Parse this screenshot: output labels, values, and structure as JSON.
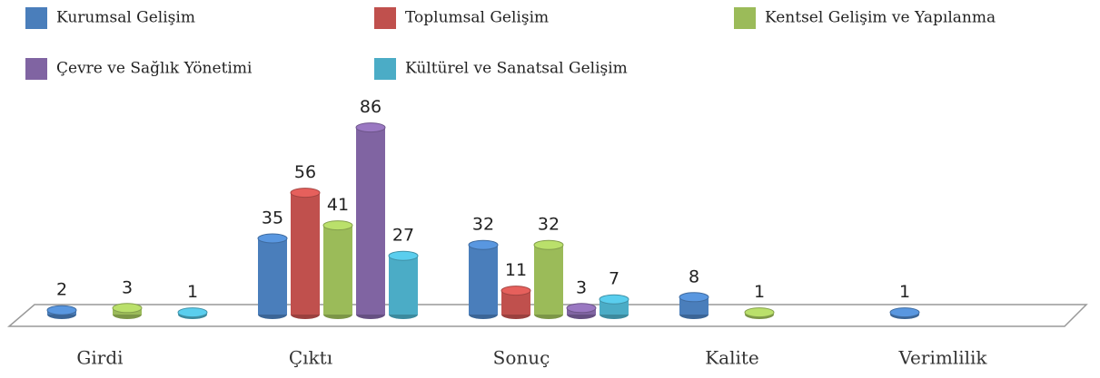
{
  "chart_data": {
    "type": "bar",
    "categories": [
      "Girdi",
      "Çıktı",
      "Sonuç",
      "Kalite",
      "Verimlilik"
    ],
    "series": [
      {
        "name": "Kurumsal Gelişim",
        "color": "#4a7ebb",
        "values": [
          2,
          35,
          32,
          8,
          1
        ]
      },
      {
        "name": "Toplumsal Gelişim",
        "color": "#c0504d",
        "values": [
          null,
          56,
          11,
          null,
          null
        ]
      },
      {
        "name": "Kentsel Gelişim ve Yapılanma",
        "color": "#9bbb59",
        "values": [
          3,
          41,
          32,
          1,
          null
        ]
      },
      {
        "name": "Çevre ve Sağlık Yönetimi",
        "color": "#8064a2",
        "values": [
          null,
          86,
          3,
          null,
          null
        ]
      },
      {
        "name": "Kültürel ve Sanatsal Gelişim",
        "color": "#4bacc6",
        "values": [
          1,
          27,
          7,
          null,
          null
        ]
      }
    ]
  }
}
